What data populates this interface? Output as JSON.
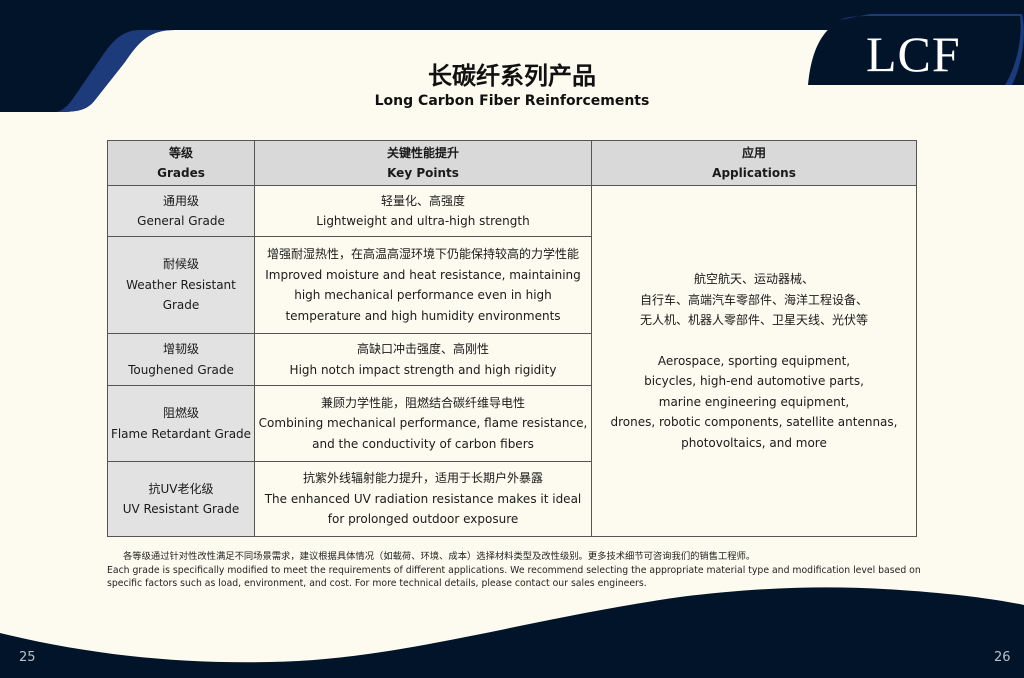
{
  "logo": "LCF",
  "title": "长碳纤系列产品",
  "subtitle": "Long Carbon Fiber Reinforcements",
  "table": {
    "headers": [
      {
        "zh": "等级",
        "en": "Grades"
      },
      {
        "zh": "关键性能提升",
        "en": "Key Points"
      },
      {
        "zh": "应用",
        "en": "Applications"
      }
    ],
    "rows": [
      {
        "grade_zh": "通用级",
        "grade_en": "General Grade",
        "key_zh": "轻量化、高强度",
        "key_en": "Lightweight and ultra-high strength"
      },
      {
        "grade_zh": "耐候级",
        "grade_en": "Weather Resistant Grade",
        "key_zh": "增强耐湿热性，在高温高湿环境下仍能保持较高的力学性能",
        "key_en": "Improved moisture and heat resistance, maintaining high mechanical performance even in high temperature and high humidity environments"
      },
      {
        "grade_zh": "增韧级",
        "grade_en": "Toughened Grade",
        "key_zh": "高缺口冲击强度、高刚性",
        "key_en": "High notch impact strength and high rigidity"
      },
      {
        "grade_zh": "阻燃级",
        "grade_en": "Flame Retardant Grade",
        "key_zh": "兼顾力学性能，阻燃结合碳纤维导电性",
        "key_en": "Combining mechanical performance, flame resistance, and the conductivity of carbon fibers"
      },
      {
        "grade_zh": "抗UV老化级",
        "grade_en": "UV Resistant Grade",
        "key_zh": "抗紫外线辐射能力提升，适用于长期户外暴露",
        "key_en": "The enhanced UV radiation resistance makes it ideal for prolonged outdoor exposure"
      }
    ],
    "applications_zh": [
      "航空航天、运动器械、",
      "自行车、高端汽车零部件、海洋工程设备、",
      "无人机、机器人零部件、卫星天线、光伏等"
    ],
    "applications_en": [
      "Aerospace, sporting equipment,",
      "bicycles, high-end automotive parts,",
      "marine engineering equipment,",
      "drones, robotic components, satellite antennas,",
      "photovoltaics, and more"
    ]
  },
  "note": {
    "zh": "各等级通过针对性改性满足不同场景需求，建议根据具体情况（如载荷、环境、成本）选择材料类型及改性级别。更多技术细节可咨询我们的销售工程师。",
    "en": "Each grade is specifically modified to meet the requirements of different applications. We recommend selecting the appropriate material type and modification level based on specific factors such as load, environment, and cost. For more technical details, please contact our sales engineers."
  },
  "page_left": "25",
  "page_right": "26",
  "colors": {
    "navy": "#021429",
    "blue": "#1d3a7a",
    "cream": "#fdfbf0",
    "header_grey": "#d9d9d9"
  }
}
